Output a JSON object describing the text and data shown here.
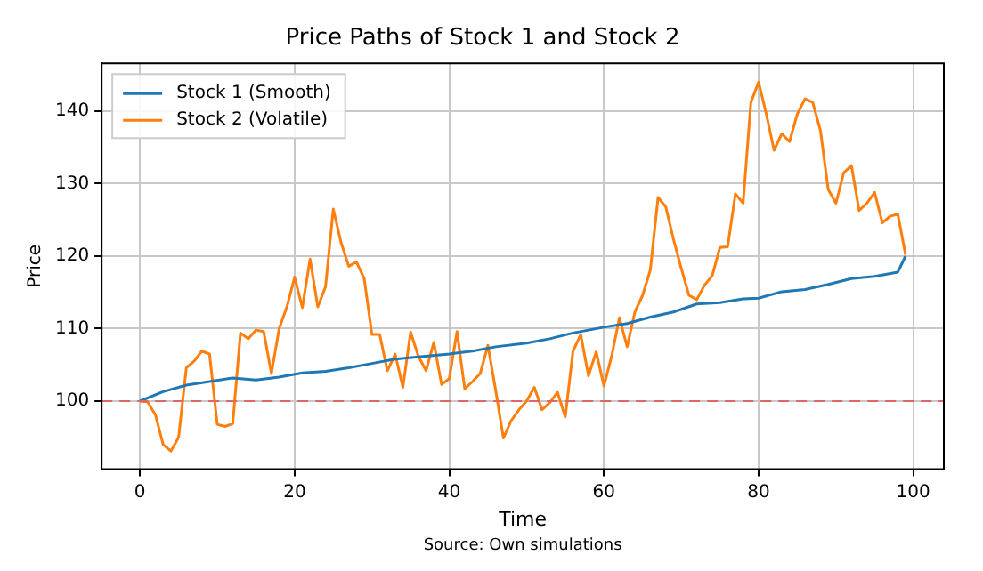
{
  "chart_data": {
    "type": "line",
    "title": "Price Paths of Stock 1 and Stock 2",
    "xlabel": "Time",
    "ylabel": "Price",
    "annotations": [
      "Source: Own simulations"
    ],
    "xlim": [
      -4.95,
      103.95
    ],
    "xticks": [
      0,
      20,
      40,
      60,
      80,
      100
    ],
    "ylim": [
      90.6,
      146.6
    ],
    "yticks": [
      100,
      110,
      120,
      130,
      140
    ],
    "grid": true,
    "legend": "top left",
    "line_style": "solid",
    "marker": "none",
    "ref_lines": [
      {
        "axis": "y",
        "value": 100,
        "color": "#e06666",
        "line_style": "dashed"
      }
    ],
    "series": [
      {
        "name": "Stock 1 (Smooth)",
        "color": "#1f77b4",
        "x": [
          0,
          3,
          6,
          9,
          12,
          15,
          18,
          21,
          24,
          27,
          30,
          33,
          36,
          40,
          43,
          46,
          50,
          53,
          56,
          60,
          63,
          66,
          69,
          72,
          75,
          78,
          80,
          83,
          86,
          89,
          92,
          95,
          98,
          99
        ],
        "values": [
          100,
          101.3,
          102.2,
          102.7,
          103.2,
          102.9,
          103.3,
          103.9,
          104.1,
          104.6,
          105.2,
          105.8,
          106.1,
          106.5,
          106.9,
          107.5,
          108,
          108.6,
          109.4,
          110.2,
          110.7,
          111.6,
          112.3,
          113.4,
          113.6,
          114.1,
          114.2,
          115.1,
          115.4,
          116.1,
          116.9,
          117.2,
          117.8,
          120
        ]
      },
      {
        "name": "Stock 2 (Volatile)",
        "color": "#ff7f0e",
        "x": [
          0,
          1,
          2,
          3,
          4,
          5,
          6,
          7,
          8,
          9,
          10,
          11,
          12,
          13,
          14,
          15,
          16,
          17,
          18,
          19,
          20,
          21,
          22,
          23,
          24,
          25,
          26,
          27,
          28,
          29,
          30,
          31,
          32,
          33,
          34,
          35,
          36,
          37,
          38,
          39,
          40,
          41,
          42,
          43,
          44,
          45,
          46,
          47,
          48,
          49,
          50,
          51,
          52,
          53,
          54,
          55,
          56,
          57,
          58,
          59,
          60,
          61,
          62,
          63,
          64,
          65,
          66,
          67,
          68,
          69,
          70,
          71,
          72,
          73,
          74,
          75,
          76,
          77,
          78,
          79,
          80,
          81,
          82,
          83,
          84,
          85,
          86,
          87,
          88,
          89,
          90,
          91,
          92,
          93,
          94,
          95,
          96,
          97,
          98,
          99
        ],
        "values": [
          100,
          99.9,
          98.1,
          94,
          93.1,
          95,
          104.6,
          105.5,
          106.9,
          106.5,
          96.8,
          96.5,
          96.9,
          109.4,
          108.6,
          109.8,
          109.6,
          103.8,
          110,
          113,
          117.1,
          112.9,
          119.6,
          113,
          115.8,
          126.5,
          121.9,
          118.6,
          119.2,
          116.9,
          109.2,
          109.2,
          104.2,
          106.5,
          101.9,
          109.5,
          106.2,
          104.2,
          108.1,
          102.3,
          103.1,
          109.6,
          101.7,
          102.7,
          103.8,
          107.7,
          101.5,
          94.9,
          97.3,
          98.8,
          100,
          101.9,
          98.8,
          99.8,
          101.2,
          97.8,
          106.9,
          109.2,
          103.5,
          106.8,
          102.1,
          106.2,
          111.5,
          107.5,
          112.3,
          114.6,
          118.1,
          128.1,
          126.8,
          122.3,
          118.3,
          114.6,
          114,
          116,
          117.3,
          121.2,
          121.3,
          128.6,
          127.3,
          141.2,
          144,
          139.6,
          134.6,
          136.9,
          135.8,
          139.6,
          141.7,
          141.2,
          137.3,
          129.2,
          127.3,
          131.5,
          132.5,
          126.3,
          127.3,
          128.8,
          124.6,
          125.5,
          125.8,
          120.2
        ]
      }
    ]
  }
}
